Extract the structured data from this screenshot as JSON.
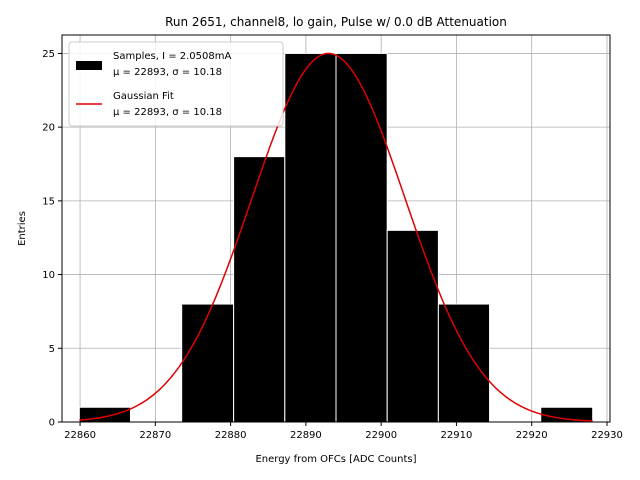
{
  "chart_data": {
    "type": "bar",
    "title": "Run 2651, channel8, lo gain, Pulse w/ 0.0 dB Attenuation",
    "xlabel": "Energy from OFCs [ADC Counts]",
    "ylabel": "Entries",
    "xlim": [
      22857.6,
      22930.4
    ],
    "ylim": [
      0,
      26.25
    ],
    "xticks": [
      22860,
      22870,
      22880,
      22890,
      22900,
      22910,
      22920,
      22930
    ],
    "yticks": [
      0,
      5,
      10,
      15,
      20,
      25
    ],
    "grid": true,
    "legend_position": "top-left",
    "bar_color": "#000000",
    "fit_color": "#e00000",
    "histogram": {
      "bin_edges": [
        22859.9,
        22866.7,
        22873.5,
        22880.4,
        22887.2,
        22894.0,
        22900.8,
        22907.6,
        22914.4,
        22921.2,
        22928.1
      ],
      "counts": [
        1,
        0,
        8,
        18,
        25,
        25,
        13,
        8,
        0,
        1
      ]
    },
    "fit": {
      "type": "gaussian",
      "amplitude": 25,
      "mean": 22893,
      "sigma": 10.18,
      "x_range": [
        22859.9,
        22928.1
      ]
    },
    "legend": [
      {
        "line1": "Samples, I = 2.0508mA",
        "line2": "μ = 22893, σ = 10.18"
      },
      {
        "line1": "Gaussian Fit",
        "line2": "μ = 22893, σ = 10.18"
      }
    ]
  }
}
